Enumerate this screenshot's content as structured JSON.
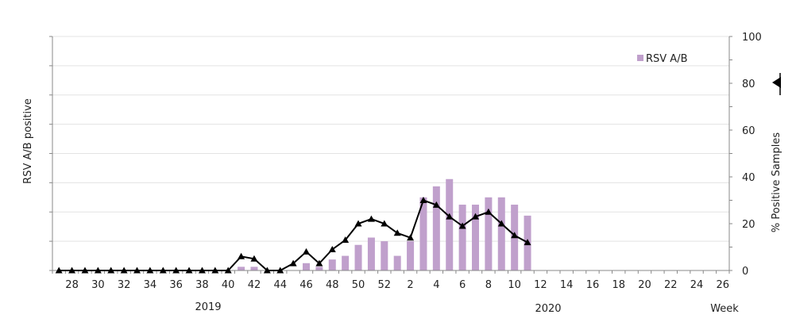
{
  "chart_data": {
    "type": "bar",
    "left_axis_label": "RSV A/B positive",
    "right_axis_label": "% Positive Samples",
    "right_ylim": [
      0,
      100
    ],
    "right_ticks": [
      "0",
      "20",
      "40",
      "60",
      "80",
      "100"
    ],
    "x_axis_tail_label": "Week",
    "year_labels": [
      "2019",
      "2020"
    ],
    "x_weeks": [
      27,
      28,
      29,
      30,
      31,
      32,
      33,
      34,
      35,
      36,
      37,
      38,
      39,
      40,
      41,
      42,
      43,
      44,
      45,
      46,
      47,
      48,
      49,
      50,
      51,
      52,
      1,
      2,
      3,
      4,
      5,
      6,
      7,
      8,
      9,
      10,
      11,
      12,
      13,
      14,
      15,
      16,
      17,
      18,
      19,
      20,
      21,
      22,
      23,
      24,
      25,
      26
    ],
    "x_tick_labels": [
      "28",
      "30",
      "32",
      "34",
      "36",
      "38",
      "40",
      "42",
      "44",
      "46",
      "48",
      "50",
      "52",
      "2",
      "4",
      "6",
      "8",
      "10",
      "12",
      "14",
      "16",
      "18",
      "20",
      "22",
      "24",
      "26"
    ],
    "grid": "horizontal",
    "legend_position": "top-right",
    "series": [
      {
        "name": "RSV A/B",
        "kind": "bar",
        "axis": "left",
        "color": "#c0a0cc",
        "values": [
          0,
          0,
          0,
          0,
          0,
          0,
          0,
          0,
          0,
          0,
          0,
          0,
          0,
          0,
          1,
          1,
          0,
          0,
          0,
          2,
          1,
          3,
          4,
          7,
          9,
          8,
          4,
          8,
          20,
          23,
          25,
          18,
          18,
          20,
          20,
          18,
          15,
          null,
          null,
          null,
          null,
          null,
          null,
          null,
          null,
          null,
          null,
          null,
          null,
          null,
          null,
          null
        ]
      },
      {
        "name": "% Positive Samples",
        "kind": "line",
        "axis": "right",
        "color": "#000000",
        "values": [
          0,
          0,
          0,
          0,
          0,
          0,
          0,
          0,
          0,
          0,
          0,
          0,
          0,
          0,
          6,
          5,
          0,
          0,
          3,
          8,
          3,
          9,
          13,
          20,
          22,
          20,
          16,
          14,
          30,
          28,
          23,
          19,
          23,
          25,
          20,
          15,
          12,
          null,
          null,
          null,
          null,
          null,
          null,
          null,
          null,
          null,
          null,
          null,
          null,
          null,
          null,
          null
        ]
      }
    ]
  }
}
